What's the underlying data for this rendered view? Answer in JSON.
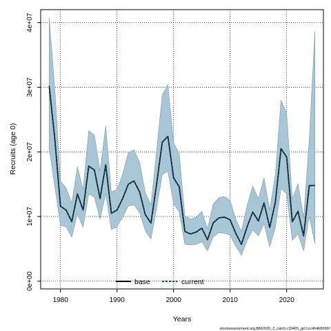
{
  "chart_data": {
    "type": "area",
    "xlabel": "Years",
    "ylabel": "Recruits (age 0)",
    "xlim": [
      1976.5,
      2026.5
    ],
    "ylim": [
      -1200000,
      42000000
    ],
    "x_ticks": [
      1980,
      1990,
      2000,
      2010,
      2020
    ],
    "y_ticks": [
      0,
      10000000,
      20000000,
      30000000,
      40000000
    ],
    "y_tick_labels": [
      "0e+00",
      "1e+07",
      "2e+07",
      "3e+07",
      "4e+07"
    ],
    "grid": true,
    "legend": {
      "placement": "bottom-center",
      "entries": [
        "base",
        "current"
      ]
    },
    "colors": {
      "band": "#a8c6d6",
      "band_edge": "#7f98a6",
      "base": "#000000",
      "current": "#0d4f66"
    },
    "years": [
      1978,
      1979,
      1980,
      1981,
      1982,
      1983,
      1984,
      1985,
      1986,
      1987,
      1988,
      1989,
      1990,
      1991,
      1992,
      1993,
      1994,
      1995,
      1996,
      1997,
      1998,
      1999,
      2000,
      2001,
      2002,
      2003,
      2004,
      2005,
      2006,
      2007,
      2008,
      2009,
      2010,
      2011,
      2012,
      2013,
      2014,
      2015,
      2016,
      2017,
      2018,
      2019,
      2020,
      2021,
      2022,
      2023,
      2024,
      2025
    ],
    "series": [
      {
        "name": "base",
        "values": [
          30200000,
          22000000,
          11600000,
          11000000,
          9200000,
          13500000,
          11000000,
          17800000,
          17200000,
          12800000,
          18000000,
          10500000,
          11000000,
          12800000,
          15000000,
          15500000,
          13800000,
          10300000,
          9000000,
          15000000,
          21500000,
          22400000,
          16000000,
          14600000,
          7700000,
          7300000,
          7600000,
          8200000,
          6400000,
          9000000,
          9800000,
          9900000,
          9500000,
          7400000,
          5700000,
          8400000,
          10700000,
          9300000,
          12100000,
          8300000,
          12200000,
          20500000,
          19200000,
          9200000,
          10800000,
          7000000,
          14800000,
          14800000
        ]
      },
      {
        "name": "current",
        "values": [
          30200000,
          22000000,
          11600000,
          11000000,
          9200000,
          13500000,
          11000000,
          17800000,
          17200000,
          12800000,
          18000000,
          10500000,
          11000000,
          12800000,
          15000000,
          15500000,
          13800000,
          10300000,
          9000000,
          15000000,
          21500000,
          22400000,
          16000000,
          14600000,
          7700000,
          7300000,
          7600000,
          8200000,
          6400000,
          9000000,
          9800000,
          9900000,
          9500000,
          7400000,
          5700000,
          8400000,
          10700000,
          9300000,
          12100000,
          8300000,
          12200000,
          20500000,
          19200000,
          9200000,
          10800000,
          7000000,
          14800000,
          14800000
        ]
      }
    ],
    "interval_lower": [
      20500000,
      14600000,
      8600000,
      8400000,
      6800000,
      10400000,
      8300000,
      13500000,
      13000000,
      9600000,
      13500000,
      8000000,
      8400000,
      9900000,
      11600000,
      11800000,
      10600000,
      7800000,
      6500000,
      11300000,
      16500000,
      17000000,
      12000000,
      10700000,
      5700000,
      5600000,
      5700000,
      6100000,
      4700000,
      6800000,
      7500000,
      7400000,
      7100000,
      5400000,
      4000000,
      6300000,
      7900000,
      7000000,
      8900000,
      5300000,
      8300000,
      14300000,
      13500000,
      6300000,
      7300000,
      4700000,
      10000000,
      5800000
    ],
    "interval_upper": [
      40800000,
      29700000,
      15500000,
      14400000,
      12100000,
      17700000,
      14200000,
      23300000,
      22600000,
      17000000,
      24000000,
      13800000,
      14200000,
      16600000,
      19900000,
      20300000,
      18400000,
      13700000,
      11800000,
      20200000,
      28800000,
      30400000,
      21400000,
      19700000,
      10100000,
      9600000,
      9900000,
      10800000,
      8100000,
      11900000,
      12900000,
      13100000,
      12500000,
      9600000,
      7700000,
      11700000,
      14700000,
      12800000,
      16000000,
      11000000,
      16500000,
      28000000,
      26000000,
      12700000,
      15100000,
      9800000,
      22000000,
      38700000
    ]
  },
  "footer_text": "stockassessment.org,BM2026_2_catch,r19465_git:1cc464b8066f"
}
